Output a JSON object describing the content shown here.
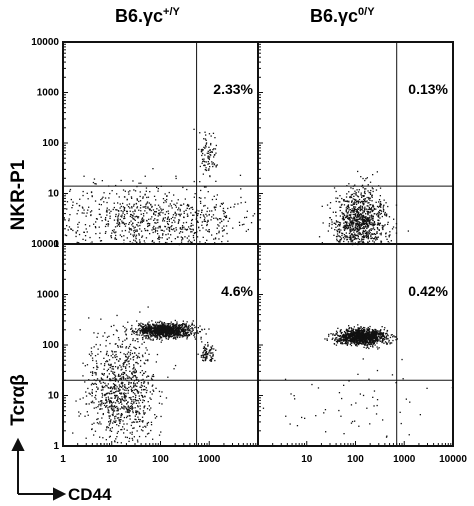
{
  "column_titles": [
    {
      "base": "B6.γc",
      "sup": "+/Y"
    },
    {
      "base": "B6.γc",
      "sup": "0/Y"
    }
  ],
  "row_labels": [
    "NKR-P1",
    "Tcrαβ"
  ],
  "x_axis_label": "CD44",
  "x_tick_labels": [
    "1",
    "10",
    "100",
    "1000",
    "10000"
  ],
  "x_tick_labels_last_panel": [
    "10",
    "100",
    "1000",
    "10000"
  ],
  "y_tick_labels": [
    "10000",
    "1000",
    "100",
    "10",
    "1"
  ],
  "chart_data": [
    {
      "type": "scatter",
      "row": 0,
      "col": 0,
      "ylabel": "NKR-P1",
      "x_scale": "log",
      "y_scale": "log",
      "xlim": [
        1,
        10000
      ],
      "ylim": [
        1,
        10000
      ],
      "gates": {
        "x": 550,
        "y": 14
      },
      "percent_label": "2.33%",
      "populations": [
        {
          "x": 60,
          "y": 3,
          "sx": 1.0,
          "sy": 0.35,
          "n": 900
        },
        {
          "x": 900,
          "y": 60,
          "sx": 0.1,
          "sy": 0.22,
          "n": 90
        }
      ]
    },
    {
      "type": "scatter",
      "row": 0,
      "col": 1,
      "x_scale": "log",
      "y_scale": "log",
      "xlim": [
        1,
        10000
      ],
      "ylim": [
        1,
        10000
      ],
      "gates": {
        "x": 700,
        "y": 14
      },
      "percent_label": "0.13%",
      "populations": [
        {
          "x": 120,
          "y": 2.8,
          "sx": 0.28,
          "sy": 0.3,
          "n": 1000
        }
      ]
    },
    {
      "type": "scatter",
      "row": 1,
      "col": 0,
      "ylabel": "Tcrαβ",
      "x_scale": "log",
      "y_scale": "log",
      "xlim": [
        1,
        10000
      ],
      "ylim": [
        1,
        10000
      ],
      "gates": {
        "x": 550,
        "y": 20
      },
      "percent_label": "4.6%",
      "populations": [
        {
          "x": 120,
          "y": 200,
          "sx": 0.28,
          "sy": 0.07,
          "n": 1100
        },
        {
          "x": 15,
          "y": 12,
          "sx": 0.35,
          "sy": 0.55,
          "n": 900
        },
        {
          "x": 900,
          "y": 70,
          "sx": 0.08,
          "sy": 0.1,
          "n": 80
        }
      ]
    },
    {
      "type": "scatter",
      "row": 1,
      "col": 1,
      "x_scale": "log",
      "y_scale": "log",
      "xlim": [
        1,
        10000
      ],
      "ylim": [
        1,
        10000
      ],
      "gates": {
        "x": 700,
        "y": 20
      },
      "percent_label": "0.42%",
      "populations": [
        {
          "x": 130,
          "y": 150,
          "sx": 0.25,
          "sy": 0.08,
          "n": 1200
        },
        {
          "x": 60,
          "y": 8,
          "sx": 0.8,
          "sy": 0.4,
          "n": 60
        }
      ]
    }
  ]
}
